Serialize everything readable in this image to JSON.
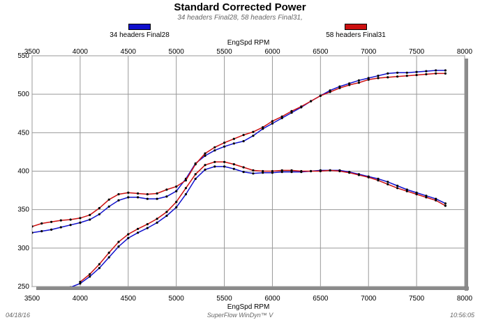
{
  "chart_data": {
    "type": "line",
    "title": "Standard Corrected Power",
    "subtitle": "34 headers Final28, 58 headers Final31,",
    "xlabel": "EngSpd RPM",
    "xlim": [
      3500,
      8000
    ],
    "ylim": [
      250,
      550
    ],
    "xticks": [
      3500,
      4000,
      4500,
      5000,
      5500,
      6000,
      6500,
      7000,
      7500,
      8000
    ],
    "yticks": [
      250,
      300,
      350,
      400,
      450,
      500,
      550
    ],
    "grid": true,
    "legend_placement": "top",
    "x": [
      3500,
      3600,
      3700,
      3800,
      3900,
      4000,
      4100,
      4200,
      4300,
      4400,
      4500,
      4600,
      4700,
      4800,
      4900,
      5000,
      5100,
      5200,
      5300,
      5400,
      5500,
      5600,
      5700,
      5800,
      5900,
      6000,
      6100,
      6200,
      6300,
      6400,
      6500,
      6600,
      6700,
      6800,
      6900,
      7000,
      7100,
      7200,
      7300,
      7400,
      7500,
      7600,
      7700,
      7800
    ],
    "series": [
      {
        "name": "34 headers Final28",
        "color": "#1010cc",
        "segments": [
          [
            320,
            322,
            324,
            327,
            330,
            333,
            337,
            344,
            354,
            362,
            366,
            366,
            364,
            364,
            367,
            374,
            390,
            410,
            420,
            427,
            432,
            436,
            439,
            446,
            455,
            462,
            469,
            476,
            483,
            491,
            498,
            505,
            510,
            514,
            518,
            521,
            524,
            527,
            528,
            528,
            529,
            530,
            531,
            531
          ],
          [
            null,
            null,
            null,
            null,
            249,
            254,
            263,
            274,
            288,
            302,
            313,
            320,
            326,
            333,
            342,
            353,
            370,
            390,
            402,
            406,
            406,
            403,
            399,
            397,
            398,
            398,
            399,
            399,
            399,
            400,
            401,
            401,
            401,
            399,
            396,
            393,
            390,
            386,
            381,
            376,
            372,
            368,
            364,
            358
          ]
        ]
      },
      {
        "name": "58 headers Final31",
        "color": "#cc1010",
        "segments": [
          [
            328,
            332,
            334,
            336,
            337,
            339,
            343,
            352,
            363,
            370,
            372,
            371,
            370,
            371,
            376,
            380,
            388,
            409,
            423,
            431,
            437,
            442,
            447,
            451,
            457,
            465,
            471,
            478,
            484,
            491,
            498,
            503,
            508,
            512,
            515,
            519,
            521,
            522,
            523,
            524,
            525,
            526,
            527,
            527
          ],
          [
            null,
            null,
            null,
            null,
            null,
            256,
            266,
            279,
            294,
            308,
            318,
            325,
            331,
            338,
            347,
            360,
            378,
            396,
            408,
            412,
            412,
            409,
            405,
            401,
            400,
            400,
            401,
            401,
            400,
            400,
            400,
            401,
            400,
            398,
            395,
            392,
            388,
            383,
            378,
            374,
            370,
            366,
            362,
            355
          ]
        ]
      }
    ]
  },
  "footer": {
    "date": "04/18/16",
    "software": "SuperFlow WinDyn™ V",
    "time": "10:56:05"
  }
}
